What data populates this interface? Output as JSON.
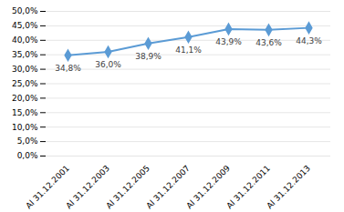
{
  "chart_data": {
    "type": "line",
    "categories": [
      "Al 31.12.2001",
      "Al 31.12.2003",
      "Al 31.12.2005",
      "Al 31.12.2007",
      "Al 31.12.2009",
      "Al 31.12.2011",
      "Al 31.12.2013"
    ],
    "values": [
      34.8,
      36.0,
      38.9,
      41.1,
      43.9,
      43.6,
      44.3
    ],
    "value_labels": [
      "34,8%",
      "36,0%",
      "38,9%",
      "41,1%",
      "43,9%",
      "43,6%",
      "44,3%"
    ],
    "data_labels": true,
    "color": "#5b9bd5",
    "marker": "diamond",
    "ylim": [
      0,
      50
    ],
    "yticks": [
      {
        "value": 0,
        "label": "0,0%"
      },
      {
        "value": 5,
        "label": "5,0%"
      },
      {
        "value": 10,
        "label": "10,0%"
      },
      {
        "value": 15,
        "label": "15,0%"
      },
      {
        "value": 20,
        "label": "20,0%"
      },
      {
        "value": 25,
        "label": "25,0%"
      },
      {
        "value": 30,
        "label": "30,0%"
      },
      {
        "value": 35,
        "label": "35,0%"
      },
      {
        "value": 40,
        "label": "40,0%"
      },
      {
        "value": 45,
        "label": "45,0%"
      },
      {
        "value": 50,
        "label": "50,0%"
      }
    ],
    "grid": true
  }
}
